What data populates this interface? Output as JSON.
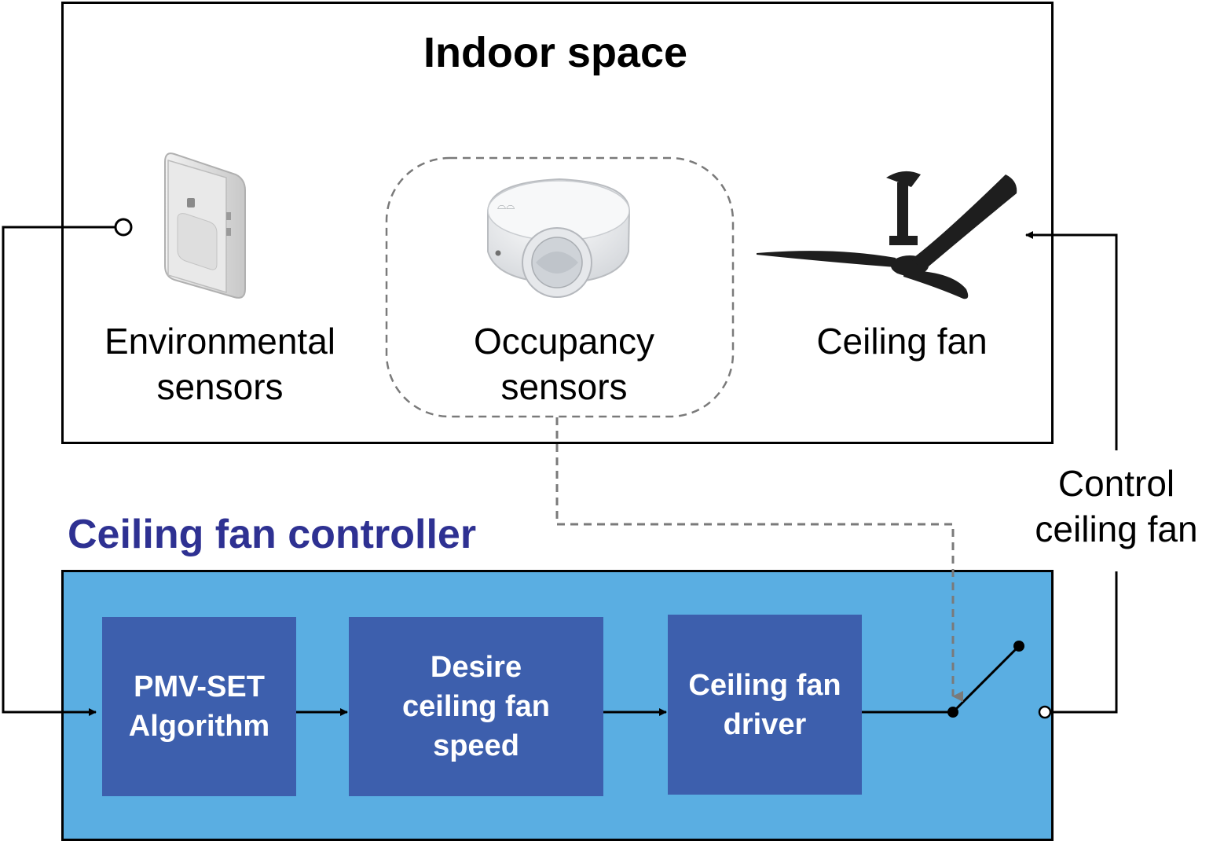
{
  "indoor": {
    "title": "Indoor space",
    "env_label_1": "Environmental",
    "env_label_2": "sensors",
    "occ_label_1": "Occupancy",
    "occ_label_2": "sensors",
    "fan_label": "Ceiling fan"
  },
  "controller": {
    "title": "Ceiling fan controller",
    "block1_line1": "PMV-SET",
    "block1_line2": "Algorithm",
    "block2_line1": "Desire",
    "block2_line2": "ceiling fan",
    "block2_line3": "speed",
    "block3_line1": "Ceiling fan",
    "block3_line2": "driver"
  },
  "feedback": {
    "label_line1": "Control",
    "label_line2": "ceiling fan"
  },
  "colors": {
    "controller_bg": "#5aaee2",
    "block_bg": "#3d5fad",
    "controller_title": "#2e3192",
    "dashed_line": "#808080"
  }
}
